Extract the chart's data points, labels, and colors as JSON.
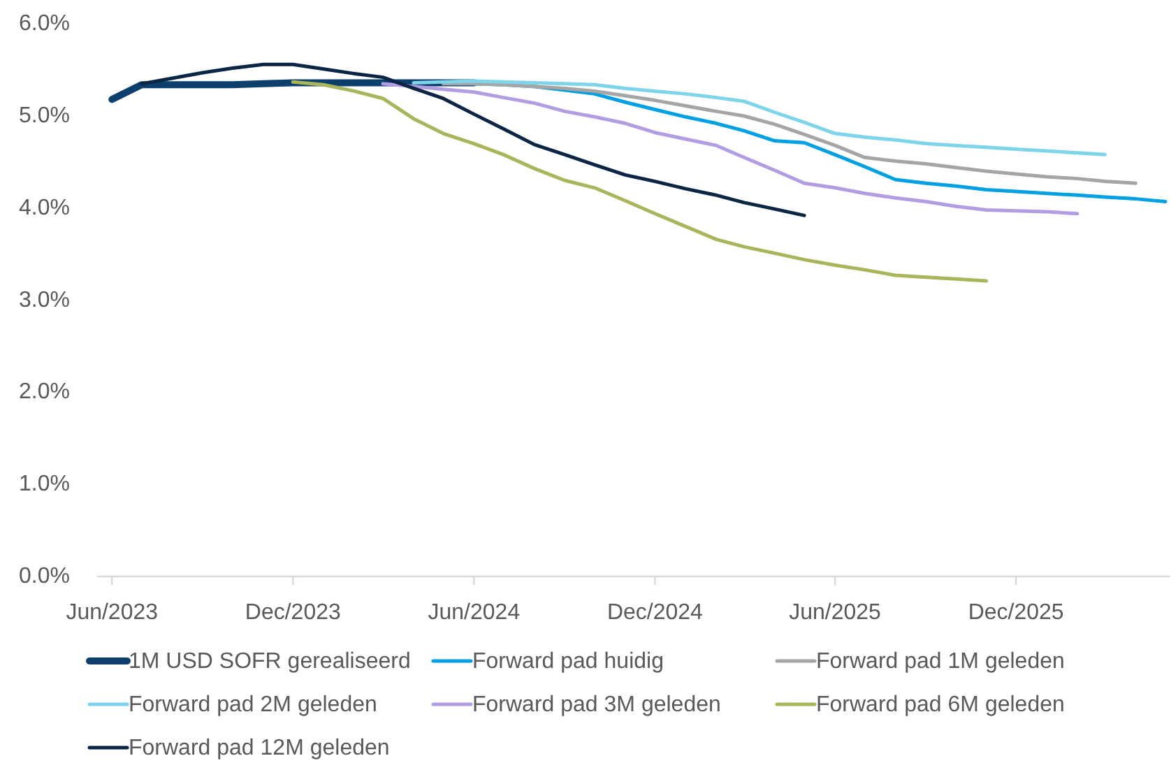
{
  "chart_data": {
    "type": "line",
    "x": [
      "2023-06",
      "2023-07",
      "2023-08",
      "2023-09",
      "2023-10",
      "2023-11",
      "2023-12",
      "2024-01",
      "2024-02",
      "2024-03",
      "2024-04",
      "2024-05",
      "2024-06",
      "2024-07",
      "2024-08",
      "2024-09",
      "2024-10",
      "2024-11",
      "2024-12",
      "2025-01",
      "2025-02",
      "2025-03",
      "2025-04",
      "2025-05",
      "2025-06",
      "2025-07",
      "2025-08",
      "2025-09",
      "2025-10",
      "2025-11",
      "2025-12",
      "2026-01",
      "2026-02",
      "2026-03",
      "2026-04",
      "2026-05"
    ],
    "xlim": [
      "2023-05-17",
      "2026-05-06"
    ],
    "xticks": [
      {
        "value": "2023-06",
        "label": "Jun/2023"
      },
      {
        "value": "2023-12",
        "label": "Dec/2023"
      },
      {
        "value": "2024-06",
        "label": "Jun/2024"
      },
      {
        "value": "2024-12",
        "label": "Dec/2024"
      },
      {
        "value": "2025-06",
        "label": "Jun/2025"
      },
      {
        "value": "2025-12",
        "label": "Dec/2025"
      }
    ],
    "ylim": [
      0,
      6
    ],
    "yticks": [
      {
        "value": 0,
        "label": "0.0%"
      },
      {
        "value": 1,
        "label": "1.0%"
      },
      {
        "value": 2,
        "label": "2.0%"
      },
      {
        "value": 3,
        "label": "3.0%"
      },
      {
        "value": 4,
        "label": "4.0%"
      },
      {
        "value": 5,
        "label": "5.0%"
      },
      {
        "value": 6,
        "label": "6.0%"
      }
    ],
    "legend": "bottom",
    "series": [
      {
        "name": "1M USD SOFR gerealiseerd",
        "color": "#0d3f6d",
        "values": [
          5.18,
          5.34,
          5.34,
          5.34,
          5.34,
          5.35,
          5.36,
          5.36,
          5.36,
          5.36,
          5.36,
          5.36,
          5.36,
          null,
          null,
          null,
          null,
          null,
          null,
          null,
          null,
          null,
          null,
          null,
          null,
          null,
          null,
          null,
          null,
          null,
          null,
          null,
          null,
          null,
          null,
          null
        ]
      },
      {
        "name": "Forward pad huidig",
        "color": "#00a0e2",
        "values": [
          null,
          null,
          null,
          null,
          null,
          null,
          null,
          null,
          null,
          null,
          null,
          null,
          5.35,
          5.34,
          5.32,
          5.28,
          5.24,
          5.15,
          5.07,
          4.99,
          4.92,
          4.84,
          4.73,
          4.71,
          4.58,
          4.45,
          4.31,
          4.27,
          4.24,
          4.2,
          4.18,
          4.16,
          4.14,
          4.12,
          4.1,
          4.07
        ]
      },
      {
        "name": "Forward pad 1M geleden",
        "color": "#a5a5a5",
        "values": [
          null,
          null,
          null,
          null,
          null,
          null,
          null,
          null,
          null,
          null,
          null,
          5.35,
          5.35,
          5.34,
          5.32,
          5.3,
          5.27,
          5.22,
          5.17,
          5.11,
          5.05,
          5.0,
          4.91,
          4.8,
          4.68,
          4.55,
          4.51,
          4.48,
          4.44,
          4.4,
          4.37,
          4.34,
          4.32,
          4.29,
          4.27,
          null
        ]
      },
      {
        "name": "Forward pad 2M geleden",
        "color": "#7ed4ea",
        "values": [
          null,
          null,
          null,
          null,
          null,
          null,
          null,
          null,
          null,
          null,
          5.36,
          5.37,
          5.38,
          5.37,
          5.36,
          5.35,
          5.34,
          5.3,
          5.27,
          5.24,
          5.2,
          5.16,
          5.04,
          4.93,
          4.81,
          4.77,
          4.74,
          4.7,
          4.68,
          4.66,
          4.64,
          4.62,
          4.6,
          4.58,
          null,
          null
        ]
      },
      {
        "name": "Forward pad 3M geleden",
        "color": "#b29ce2",
        "values": [
          null,
          null,
          null,
          null,
          null,
          null,
          null,
          null,
          null,
          5.35,
          5.32,
          5.29,
          5.26,
          5.2,
          5.14,
          5.05,
          4.99,
          4.92,
          4.82,
          4.75,
          4.68,
          4.55,
          4.41,
          4.27,
          4.22,
          4.16,
          4.11,
          4.07,
          4.02,
          3.98,
          3.97,
          3.96,
          3.94,
          null,
          null,
          null
        ]
      },
      {
        "name": "Forward pad 6M geleden",
        "color": "#aab55b",
        "values": [
          null,
          null,
          null,
          null,
          null,
          null,
          5.37,
          5.34,
          5.27,
          5.19,
          4.97,
          4.81,
          4.7,
          4.58,
          4.43,
          4.3,
          4.22,
          4.08,
          3.94,
          3.8,
          3.66,
          3.58,
          3.51,
          3.44,
          3.38,
          3.33,
          3.27,
          3.25,
          3.23,
          3.21,
          null,
          null,
          null,
          null,
          null,
          null
        ]
      },
      {
        "name": "Forward pad 12M geleden",
        "color": "#0b2644",
        "values": [
          null,
          5.35,
          5.41,
          5.47,
          5.52,
          5.56,
          5.56,
          5.51,
          5.46,
          5.42,
          5.3,
          5.19,
          5.02,
          4.86,
          4.69,
          4.58,
          4.47,
          4.36,
          4.29,
          4.21,
          4.14,
          4.06,
          3.99,
          3.92,
          null,
          null,
          null,
          null,
          null,
          null,
          null,
          null,
          null,
          null,
          null,
          null
        ]
      }
    ]
  }
}
